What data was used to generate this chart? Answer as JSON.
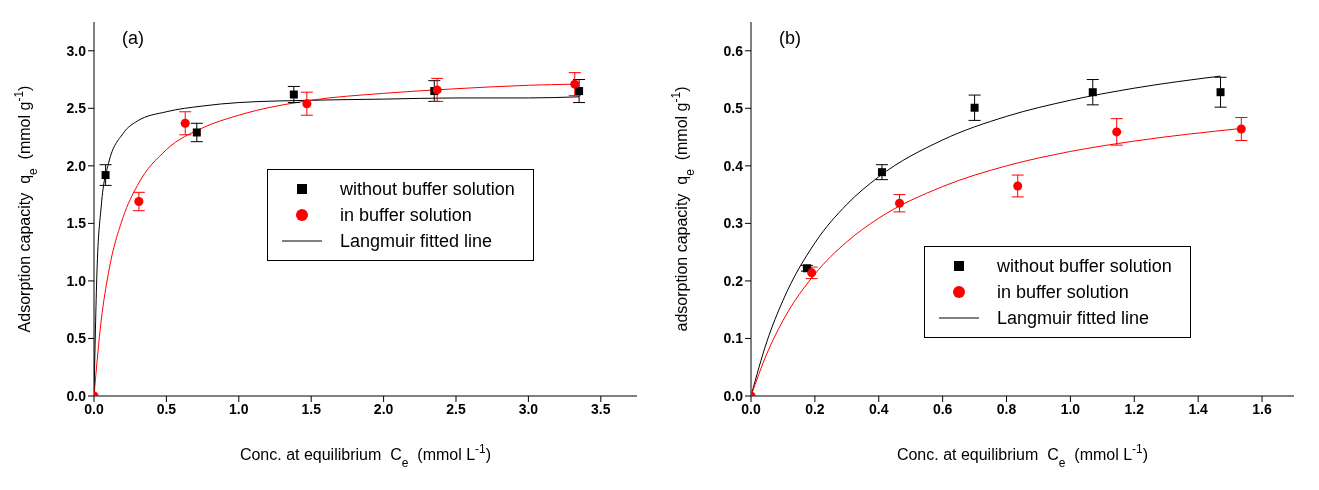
{
  "chart_data": [
    {
      "type": "scatter",
      "title": "(a)",
      "xlabel": "Conc. at equilibrium  C$_{e}$  (mmol L$^{-1}$)",
      "ylabel": "Adsorption capacity  q$_{e}$  (mmol g$^{-1}$)",
      "xlim": [
        0,
        3.75
      ],
      "ylim": [
        0,
        3.25
      ],
      "xticks": [
        {
          "value": 0,
          "label": "0.0"
        },
        0.5,
        {
          "value": 1,
          "label": "1.0"
        },
        1.5,
        {
          "value": 2,
          "label": "2.0"
        },
        2.5,
        {
          "value": 3,
          "label": "3.0"
        },
        3.5
      ],
      "yticks": [
        {
          "value": 0,
          "label": "0.0"
        },
        0.5,
        {
          "value": 1,
          "label": "1.0"
        },
        1.5,
        {
          "value": 2,
          "label": "2.0"
        },
        2.5,
        {
          "value": 3,
          "label": "3.0"
        }
      ],
      "legend": "right",
      "series": [
        {
          "name": "without buffer solution",
          "color": "#000000",
          "marker": "square",
          "x": [
            0.08,
            0.71,
            1.38,
            2.35,
            3.35
          ],
          "values": [
            1.92,
            2.29,
            2.62,
            2.65,
            2.65
          ],
          "errors": [
            0.09,
            0.08,
            0.07,
            0.09,
            0.1
          ]
        },
        {
          "name": "in buffer solution",
          "color": "#ff0000",
          "marker": "circle",
          "x": [
            0,
            0.31,
            0.63,
            1.47,
            2.37,
            3.32
          ],
          "values": [
            0,
            1.69,
            2.37,
            2.54,
            2.66,
            2.71
          ],
          "errors": [
            null,
            0.08,
            0.1,
            0.1,
            0.1,
            0.1
          ]
        },
        {
          "name": "Langmuir fitted line",
          "type": "line",
          "color": "#000000",
          "marker": "none",
          "x": [
            0,
            0.02,
            0.05,
            0.1,
            0.2,
            0.3,
            0.5,
            0.75,
            1,
            1.5,
            2,
            2.5,
            3,
            3.35
          ],
          "values": [
            0,
            1.06,
            1.65,
            2.02,
            2.28,
            2.39,
            2.47,
            2.52,
            2.55,
            2.57,
            2.58,
            2.59,
            2.59,
            2.6
          ]
        },
        {
          "type": "line",
          "color": "#ff0000",
          "marker": "none",
          "x": [
            0,
            0.05,
            0.1,
            0.2,
            0.3,
            0.5,
            0.75,
            1,
            1.5,
            2,
            2.5,
            3,
            3.32
          ],
          "values": [
            0,
            0.66,
            1.07,
            1.55,
            1.83,
            2.14,
            2.33,
            2.44,
            2.57,
            2.63,
            2.67,
            2.7,
            2.71
          ]
        }
      ]
    },
    {
      "type": "scatter",
      "title": "(b)",
      "xlabel": "Conc. at equilibrium  C$_{e}$  (mmol L$^{-1}$)",
      "ylabel": "adsorption capacity  q$_{e}$  (mmol g$^{-1}$)",
      "xlim": [
        0,
        1.7
      ],
      "ylim": [
        0,
        0.65
      ],
      "xticks": [
        {
          "value": 0,
          "label": "0.0"
        },
        0.2,
        0.4,
        0.6,
        0.8,
        {
          "value": 1,
          "label": "1.0"
        },
        1.2,
        1.4,
        1.6
      ],
      "yticks": [
        {
          "value": 0,
          "label": "0.0"
        },
        0.1,
        0.2,
        0.3,
        0.4,
        0.5,
        0.6
      ],
      "legend": "bottom right",
      "series": [
        {
          "name": "without buffer solution",
          "color": "#000000",
          "marker": "square",
          "x": [
            0.175,
            0.41,
            0.7,
            1.07,
            1.47
          ],
          "values": [
            0.222,
            0.389,
            0.501,
            0.528,
            0.528
          ],
          "errors": [
            0.005,
            0.013,
            0.022,
            0.022,
            0.026
          ]
        },
        {
          "name": "in buffer solution",
          "color": "#ff0000",
          "marker": "circle",
          "x": [
            0,
            0.19,
            0.465,
            0.835,
            1.145,
            1.535
          ],
          "values": [
            0,
            0.214,
            0.335,
            0.365,
            0.459,
            0.464
          ],
          "errors": [
            null,
            0.01,
            0.015,
            0.019,
            0.023,
            0.02
          ]
        },
        {
          "name": "Langmuir fitted line",
          "type": "line",
          "color": "#000000",
          "marker": "none",
          "x": [
            0,
            0.05,
            0.1,
            0.2,
            0.3,
            0.4,
            0.6,
            0.8,
            1,
            1.2,
            1.47
          ],
          "values": [
            0,
            0.095,
            0.166,
            0.266,
            0.333,
            0.381,
            0.445,
            0.486,
            0.514,
            0.535,
            0.556
          ]
        },
        {
          "type": "line",
          "color": "#ff0000",
          "marker": "none",
          "x": [
            0,
            0.05,
            0.1,
            0.2,
            0.3,
            0.4,
            0.6,
            0.8,
            1,
            1.2,
            1.535
          ],
          "values": [
            0,
            0.074,
            0.131,
            0.212,
            0.268,
            0.309,
            0.364,
            0.4,
            0.425,
            0.443,
            0.465
          ]
        }
      ]
    }
  ]
}
